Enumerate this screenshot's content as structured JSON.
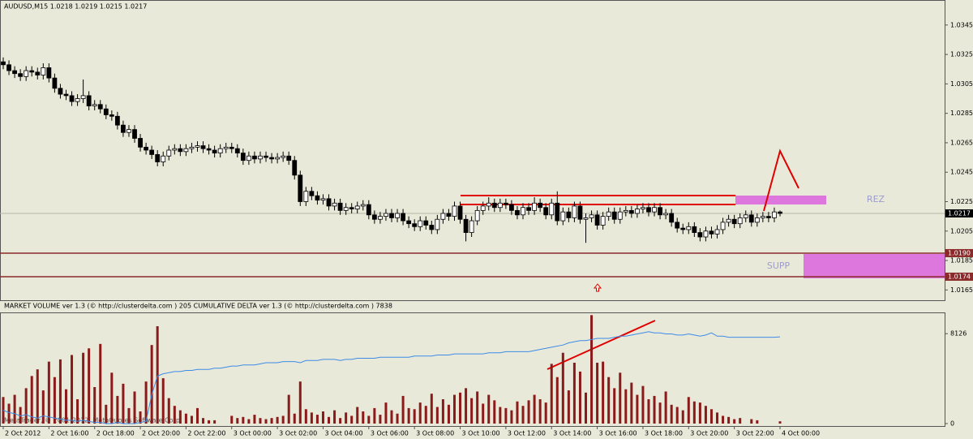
{
  "chart_data": [
    {
      "type": "candlestick",
      "title": "AUDUSD,M15  1.0218 1.0219 1.0215 1.0217",
      "categories": [
        "2 Oct 2012",
        null,
        null,
        null,
        null,
        null,
        null,
        null,
        "2 Oct 16:00",
        null,
        null,
        null,
        null,
        null,
        null,
        null,
        "2 Oct 18:00",
        null,
        null,
        null,
        null,
        null,
        null,
        null,
        "2 Oct 20:00",
        null,
        null,
        null,
        null,
        null,
        null,
        null,
        "2 Oct 22:00",
        null,
        null,
        null,
        null,
        null,
        null,
        null,
        "3 Oct 00:00",
        null,
        null,
        null,
        null,
        null,
        null,
        null,
        "3 Oct 02:00",
        null,
        null,
        null,
        null,
        null,
        null,
        null,
        "3 Oct 04:00",
        null,
        null,
        null,
        null,
        null,
        null,
        null,
        "3 Oct 06:00",
        null,
        null,
        null,
        null,
        null,
        null,
        null,
        "3 Oct 08:00",
        null,
        null,
        null,
        null,
        null,
        null,
        null,
        "3 Oct 10:00",
        null,
        null,
        null,
        null,
        null,
        null,
        null,
        "3 Oct 12:00",
        null,
        null,
        null,
        null,
        null,
        null,
        null,
        "3 Oct 14:00",
        null,
        null,
        null,
        null,
        null,
        null,
        null,
        "3 Oct 16:00",
        null,
        null,
        null,
        null,
        null,
        null,
        null,
        "3 Oct 18:00",
        null,
        null,
        null,
        null,
        null,
        null,
        null,
        "3 Oct 20:00",
        null,
        null,
        null,
        null,
        null,
        null,
        null,
        "3 Oct 22:00",
        null,
        null,
        null,
        null,
        null,
        null,
        null,
        "4 Oct 00:00"
      ],
      "open": [
        1.032,
        1.0318,
        1.0314,
        1.0312,
        1.031,
        1.0314,
        1.0313,
        1.0311,
        1.0316,
        1.0309,
        1.0302,
        1.0298,
        1.0297,
        1.0293,
        1.0295,
        1.0297,
        1.029,
        1.0291,
        1.0288,
        1.0284,
        1.0283,
        1.0277,
        1.0272,
        1.0274,
        1.0268,
        1.0262,
        1.026,
        1.0257,
        1.0252,
        1.0256,
        1.026,
        1.0261,
        1.0259,
        1.0261,
        1.0262,
        1.0263,
        1.0261,
        1.026,
        1.0258,
        1.0261,
        1.0262,
        1.0261,
        1.0258,
        1.0253,
        1.0256,
        1.0254,
        1.0256,
        1.0255,
        1.0254,
        1.0255,
        1.0256,
        1.0253,
        1.0243,
        1.0225,
        1.0232,
        1.0229,
        1.0226,
        1.0227,
        1.0222,
        1.0224,
        1.0219,
        1.0221,
        1.022,
        1.0222,
        1.0223,
        1.0216,
        1.0213,
        1.0215,
        1.0217,
        1.0214,
        1.0217,
        1.0212,
        1.021,
        1.0208,
        1.0212,
        1.0209,
        1.0206,
        1.0213,
        1.0217,
        1.0215,
        1.0222,
        1.0213,
        1.0204,
        1.0212,
        1.0219,
        1.0222,
        1.0224,
        1.0221,
        1.0224,
        1.0223,
        1.0219,
        1.0216,
        1.0221,
        1.0219,
        1.0224,
        1.0221,
        1.0216,
        1.0224,
        1.0212,
        1.0218,
        1.0214,
        1.0222,
        1.0213,
        1.0214,
        1.0216,
        1.0209,
        1.0215,
        1.0218,
        1.0213,
        1.0218,
        1.0219,
        1.0217,
        1.022,
        1.0221,
        1.0218,
        1.0221,
        1.0216,
        1.0217,
        1.0211,
        1.0207,
        1.0206,
        1.0208,
        1.0204,
        1.0201,
        1.0205,
        1.0203,
        1.0206,
        1.0211,
        1.0213,
        1.021,
        1.0214,
        1.0216,
        1.0211,
        1.0214,
        1.0215,
        1.0214,
        1.0218
      ],
      "high": [
        1.0323,
        1.0321,
        1.0317,
        1.0315,
        1.0317,
        1.0317,
        1.0316,
        1.0319,
        1.0319,
        1.0312,
        1.0305,
        1.0301,
        1.03,
        1.0298,
        1.0308,
        1.03,
        1.0294,
        1.0294,
        1.0291,
        1.0287,
        1.0286,
        1.028,
        1.0277,
        1.0277,
        1.0271,
        1.0265,
        1.0263,
        1.026,
        1.0259,
        1.0263,
        1.0264,
        1.0264,
        1.0264,
        1.0265,
        1.0266,
        1.0266,
        1.0264,
        1.0263,
        1.0264,
        1.0265,
        1.0265,
        1.0264,
        1.0261,
        1.0259,
        1.0259,
        1.0259,
        1.0259,
        1.0258,
        1.0258,
        1.0259,
        1.0259,
        1.0256,
        1.0246,
        1.0235,
        1.0235,
        1.0232,
        1.023,
        1.023,
        1.0227,
        1.0227,
        1.0224,
        1.0224,
        1.0225,
        1.0226,
        1.0226,
        1.0219,
        1.0218,
        1.022,
        1.022,
        1.022,
        1.022,
        1.0215,
        1.0213,
        1.0215,
        1.0215,
        1.0212,
        1.0216,
        1.022,
        1.022,
        1.0225,
        1.0225,
        1.0216,
        1.0215,
        1.0222,
        1.0225,
        1.0228,
        1.0227,
        1.0227,
        1.0227,
        1.0226,
        1.0222,
        1.0224,
        1.0224,
        1.0228,
        1.0227,
        1.0224,
        1.0227,
        1.0232,
        1.0221,
        1.0221,
        1.0225,
        1.0225,
        1.0217,
        1.0219,
        1.0219,
        1.0218,
        1.0221,
        1.0221,
        1.0221,
        1.0222,
        1.0222,
        1.0223,
        1.0224,
        1.0224,
        1.0224,
        1.0224,
        1.022,
        1.022,
        1.0214,
        1.021,
        1.0211,
        1.0211,
        1.0207,
        1.0208,
        1.0208,
        1.0209,
        1.0214,
        1.0216,
        1.0216,
        1.0217,
        1.0219,
        1.0219,
        1.0217,
        1.0218,
        1.0218,
        1.0221,
        1.0219
      ],
      "low": [
        1.0315,
        1.0311,
        1.0309,
        1.0307,
        1.0307,
        1.031,
        1.0308,
        1.0308,
        1.0306,
        1.0299,
        1.0295,
        1.0294,
        1.029,
        1.029,
        1.0292,
        1.0287,
        1.0287,
        1.0285,
        1.0281,
        1.028,
        1.0274,
        1.0269,
        1.0269,
        1.0265,
        1.0259,
        1.0257,
        1.0254,
        1.0249,
        1.0249,
        1.0253,
        1.0257,
        1.0256,
        1.0256,
        1.0258,
        1.0259,
        1.0258,
        1.0257,
        1.0255,
        1.0255,
        1.0258,
        1.0258,
        1.0255,
        1.025,
        1.025,
        1.0251,
        1.0251,
        1.0252,
        1.0251,
        1.0251,
        1.0252,
        1.025,
        1.024,
        1.0222,
        1.0222,
        1.0226,
        1.0223,
        1.0223,
        1.0219,
        1.0219,
        1.0216,
        1.0216,
        1.0217,
        1.0217,
        1.0219,
        1.0213,
        1.021,
        1.021,
        1.0212,
        1.0211,
        1.0211,
        1.0209,
        1.0207,
        1.0205,
        1.0205,
        1.0206,
        1.0203,
        1.0203,
        1.021,
        1.0212,
        1.0212,
        1.021,
        1.0198,
        1.0201,
        1.0209,
        1.0216,
        1.0219,
        1.0218,
        1.0218,
        1.022,
        1.0216,
        1.0213,
        1.0213,
        1.0216,
        1.0216,
        1.0218,
        1.0213,
        1.0213,
        1.0209,
        1.0209,
        1.0211,
        1.0211,
        1.021,
        1.0197,
        1.0211,
        1.0206,
        1.0206,
        1.0212,
        1.021,
        1.021,
        1.0215,
        1.0214,
        1.0214,
        1.0217,
        1.0215,
        1.0215,
        1.0213,
        1.0213,
        1.0208,
        1.0204,
        1.0203,
        1.0203,
        1.0201,
        1.0198,
        1.0198,
        1.02,
        1.02,
        1.0203,
        1.0208,
        1.0207,
        1.0207,
        1.0211,
        1.0208,
        1.0208,
        1.0211,
        1.0211,
        1.0211,
        1.0215
      ],
      "close": [
        1.0318,
        1.0314,
        1.0312,
        1.031,
        1.0314,
        1.0313,
        1.0311,
        1.0316,
        1.0309,
        1.0302,
        1.0298,
        1.0297,
        1.0293,
        1.0295,
        1.0297,
        1.029,
        1.0291,
        1.0288,
        1.0284,
        1.0283,
        1.0277,
        1.0272,
        1.0274,
        1.0268,
        1.0262,
        1.026,
        1.0257,
        1.0252,
        1.0256,
        1.026,
        1.0261,
        1.0259,
        1.0261,
        1.0262,
        1.0263,
        1.0261,
        1.026,
        1.0258,
        1.0261,
        1.0262,
        1.0261,
        1.0258,
        1.0253,
        1.0256,
        1.0254,
        1.0256,
        1.0255,
        1.0254,
        1.0255,
        1.0256,
        1.0253,
        1.0243,
        1.0225,
        1.0232,
        1.0229,
        1.0226,
        1.0227,
        1.0222,
        1.0224,
        1.0219,
        1.0221,
        1.022,
        1.0222,
        1.0223,
        1.0216,
        1.0213,
        1.0215,
        1.0217,
        1.0214,
        1.0217,
        1.0212,
        1.021,
        1.0208,
        1.0212,
        1.0209,
        1.0206,
        1.0213,
        1.0217,
        1.0215,
        1.0222,
        1.0213,
        1.0204,
        1.0212,
        1.0219,
        1.0222,
        1.0224,
        1.0221,
        1.0224,
        1.0223,
        1.0219,
        1.0216,
        1.0221,
        1.0219,
        1.0224,
        1.0221,
        1.0216,
        1.0224,
        1.0212,
        1.0218,
        1.0214,
        1.0222,
        1.0213,
        1.0214,
        1.0216,
        1.0209,
        1.0215,
        1.0218,
        1.0213,
        1.0218,
        1.0219,
        1.0217,
        1.022,
        1.0221,
        1.0218,
        1.0221,
        1.0216,
        1.0217,
        1.0211,
        1.0207,
        1.0206,
        1.0208,
        1.0204,
        1.0201,
        1.0205,
        1.0203,
        1.0206,
        1.0211,
        1.0213,
        1.021,
        1.0214,
        1.0216,
        1.0211,
        1.0214,
        1.0215,
        1.0214,
        1.0218,
        1.0217
      ],
      "up_color": "#ffffff",
      "down_color": "#000000",
      "edge_color": "#000000",
      "ylim": [
        1.0158,
        1.0362
      ],
      "yticks": [
        1.0345,
        1.0325,
        1.0305,
        1.0285,
        1.0265,
        1.0245,
        1.0225,
        1.0205,
        1.0185,
        1.0165
      ],
      "current": 1.0217,
      "levels": [
        {
          "value": 1.019,
          "label": "1.0190"
        },
        {
          "value": 1.0174,
          "label": "1.0174"
        }
      ],
      "level_color": "#8b2a2a",
      "annotations": [
        "REZ",
        "SUPP"
      ]
    },
    {
      "type": "volume",
      "title": "MARKET VOLUME ver 1.3 (© http://clusterdelta.com ) 205  CUMULATIVE DELTA ver 1.3 (© http://clusterdelta.com ) 7838",
      "series": [
        {
          "type": "bar",
          "color": "#8b1a1a",
          "values": [
            2400,
            1800,
            2600,
            1500,
            3200,
            4300,
            4900,
            3000,
            5600,
            4200,
            5800,
            3100,
            6200,
            2200,
            6400,
            6800,
            3300,
            7200,
            1700,
            4600,
            2500,
            3600,
            1400,
            2900,
            1100,
            3800,
            7100,
            8800,
            4100,
            2300,
            1600,
            1200,
            900,
            700,
            1400,
            500,
            300,
            300,
            0,
            0,
            700,
            500,
            600,
            400,
            800,
            500,
            400,
            500,
            600,
            700,
            2600,
            900,
            3800,
            1300,
            1000,
            800,
            1100,
            600,
            1200,
            500,
            1000,
            700,
            1500,
            1100,
            700,
            1400,
            800,
            1900,
            1200,
            900,
            2500,
            1400,
            1300,
            1900,
            1600,
            2700,
            1500,
            2200,
            1700,
            2600,
            2800,
            3200,
            2300,
            2900,
            1800,
            2600,
            2100,
            1500,
            1400,
            1200,
            2000,
            1600,
            2100,
            2600,
            2200,
            1900,
            5400,
            4200,
            6400,
            3000,
            5500,
            4700,
            2800,
            9800,
            5500,
            5600,
            4200,
            3200,
            4600,
            3100,
            3700,
            2600,
            3400,
            2200,
            2500,
            1900,
            2900,
            1700,
            1500,
            1200,
            2400,
            2000,
            1900,
            1600,
            1300,
            1000,
            700,
            600,
            400,
            500,
            0,
            400,
            300,
            0,
            0,
            0,
            205
          ]
        },
        {
          "type": "line",
          "color": "#3c8ce6",
          "values": [
            1200,
            1000,
            900,
            700,
            800,
            600,
            500,
            700,
            600,
            500,
            400,
            300,
            300,
            200,
            300,
            200,
            100,
            100,
            0,
            0,
            100,
            0,
            0,
            0,
            100,
            200,
            2600,
            4300,
            4500,
            4600,
            4700,
            4700,
            4800,
            4800,
            4900,
            4900,
            4900,
            5000,
            5000,
            5100,
            5200,
            5200,
            5300,
            5300,
            5300,
            5400,
            5500,
            5500,
            5500,
            5600,
            5600,
            5600,
            5500,
            5700,
            5700,
            5700,
            5800,
            5800,
            5800,
            5700,
            5800,
            5800,
            5900,
            5900,
            5900,
            5900,
            6000,
            6000,
            6000,
            6000,
            6000,
            6000,
            6100,
            6100,
            6100,
            6100,
            6200,
            6200,
            6200,
            6300,
            6300,
            6300,
            6300,
            6300,
            6300,
            6400,
            6400,
            6400,
            6500,
            6500,
            6500,
            6500,
            6500,
            6600,
            6700,
            6800,
            6900,
            7000,
            7100,
            7300,
            7400,
            7500,
            7500,
            7600,
            7700,
            7700,
            7700,
            7800,
            7900,
            7900,
            8000,
            8100,
            8200,
            8300,
            8200,
            8200,
            8100,
            8100,
            8000,
            8000,
            8100,
            8000,
            7900,
            8000,
            8200,
            7900,
            7900,
            7800,
            7800,
            7800,
            7800,
            7800,
            7800,
            7800,
            7800,
            7800,
            7838
          ]
        }
      ],
      "ylim": [
        0,
        9900
      ],
      "yticks": [
        0,
        8126
      ]
    }
  ],
  "watermark": "MetaTrader, © 2001-2012, MetaQuotes Software Corp."
}
